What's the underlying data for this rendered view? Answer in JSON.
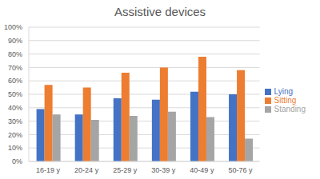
{
  "chart_data": {
    "type": "bar",
    "title": "Assistive devices",
    "categories": [
      "16-19 y",
      "20-24 y",
      "25-29 y",
      "30-39 y",
      "40-49 y",
      "50-76 y"
    ],
    "series": [
      {
        "name": "Lying",
        "color": "#4472c4",
        "values": [
          39,
          35,
          47,
          46,
          52,
          50
        ]
      },
      {
        "name": "Sitting",
        "color": "#ed7d31",
        "values": [
          57,
          55,
          66,
          70,
          78,
          68
        ]
      },
      {
        "name": "Standing",
        "color": "#a5a5a5",
        "values": [
          35,
          31,
          34,
          37,
          33,
          17
        ]
      }
    ],
    "ylim": [
      0,
      100
    ],
    "yticks": [
      {
        "value": 0,
        "label": "0%"
      },
      {
        "value": 10,
        "label": "10%"
      },
      {
        "value": 20,
        "label": "20%"
      },
      {
        "value": 30,
        "label": "30%"
      },
      {
        "value": 40,
        "label": "40%"
      },
      {
        "value": 50,
        "label": "50%"
      },
      {
        "value": 60,
        "label": "60%"
      },
      {
        "value": 70,
        "label": "70%"
      },
      {
        "value": 80,
        "label": "80%"
      },
      {
        "value": 90,
        "label": "90%"
      },
      {
        "value": 100,
        "label": "100%"
      }
    ],
    "grid": true,
    "legend": "right"
  }
}
